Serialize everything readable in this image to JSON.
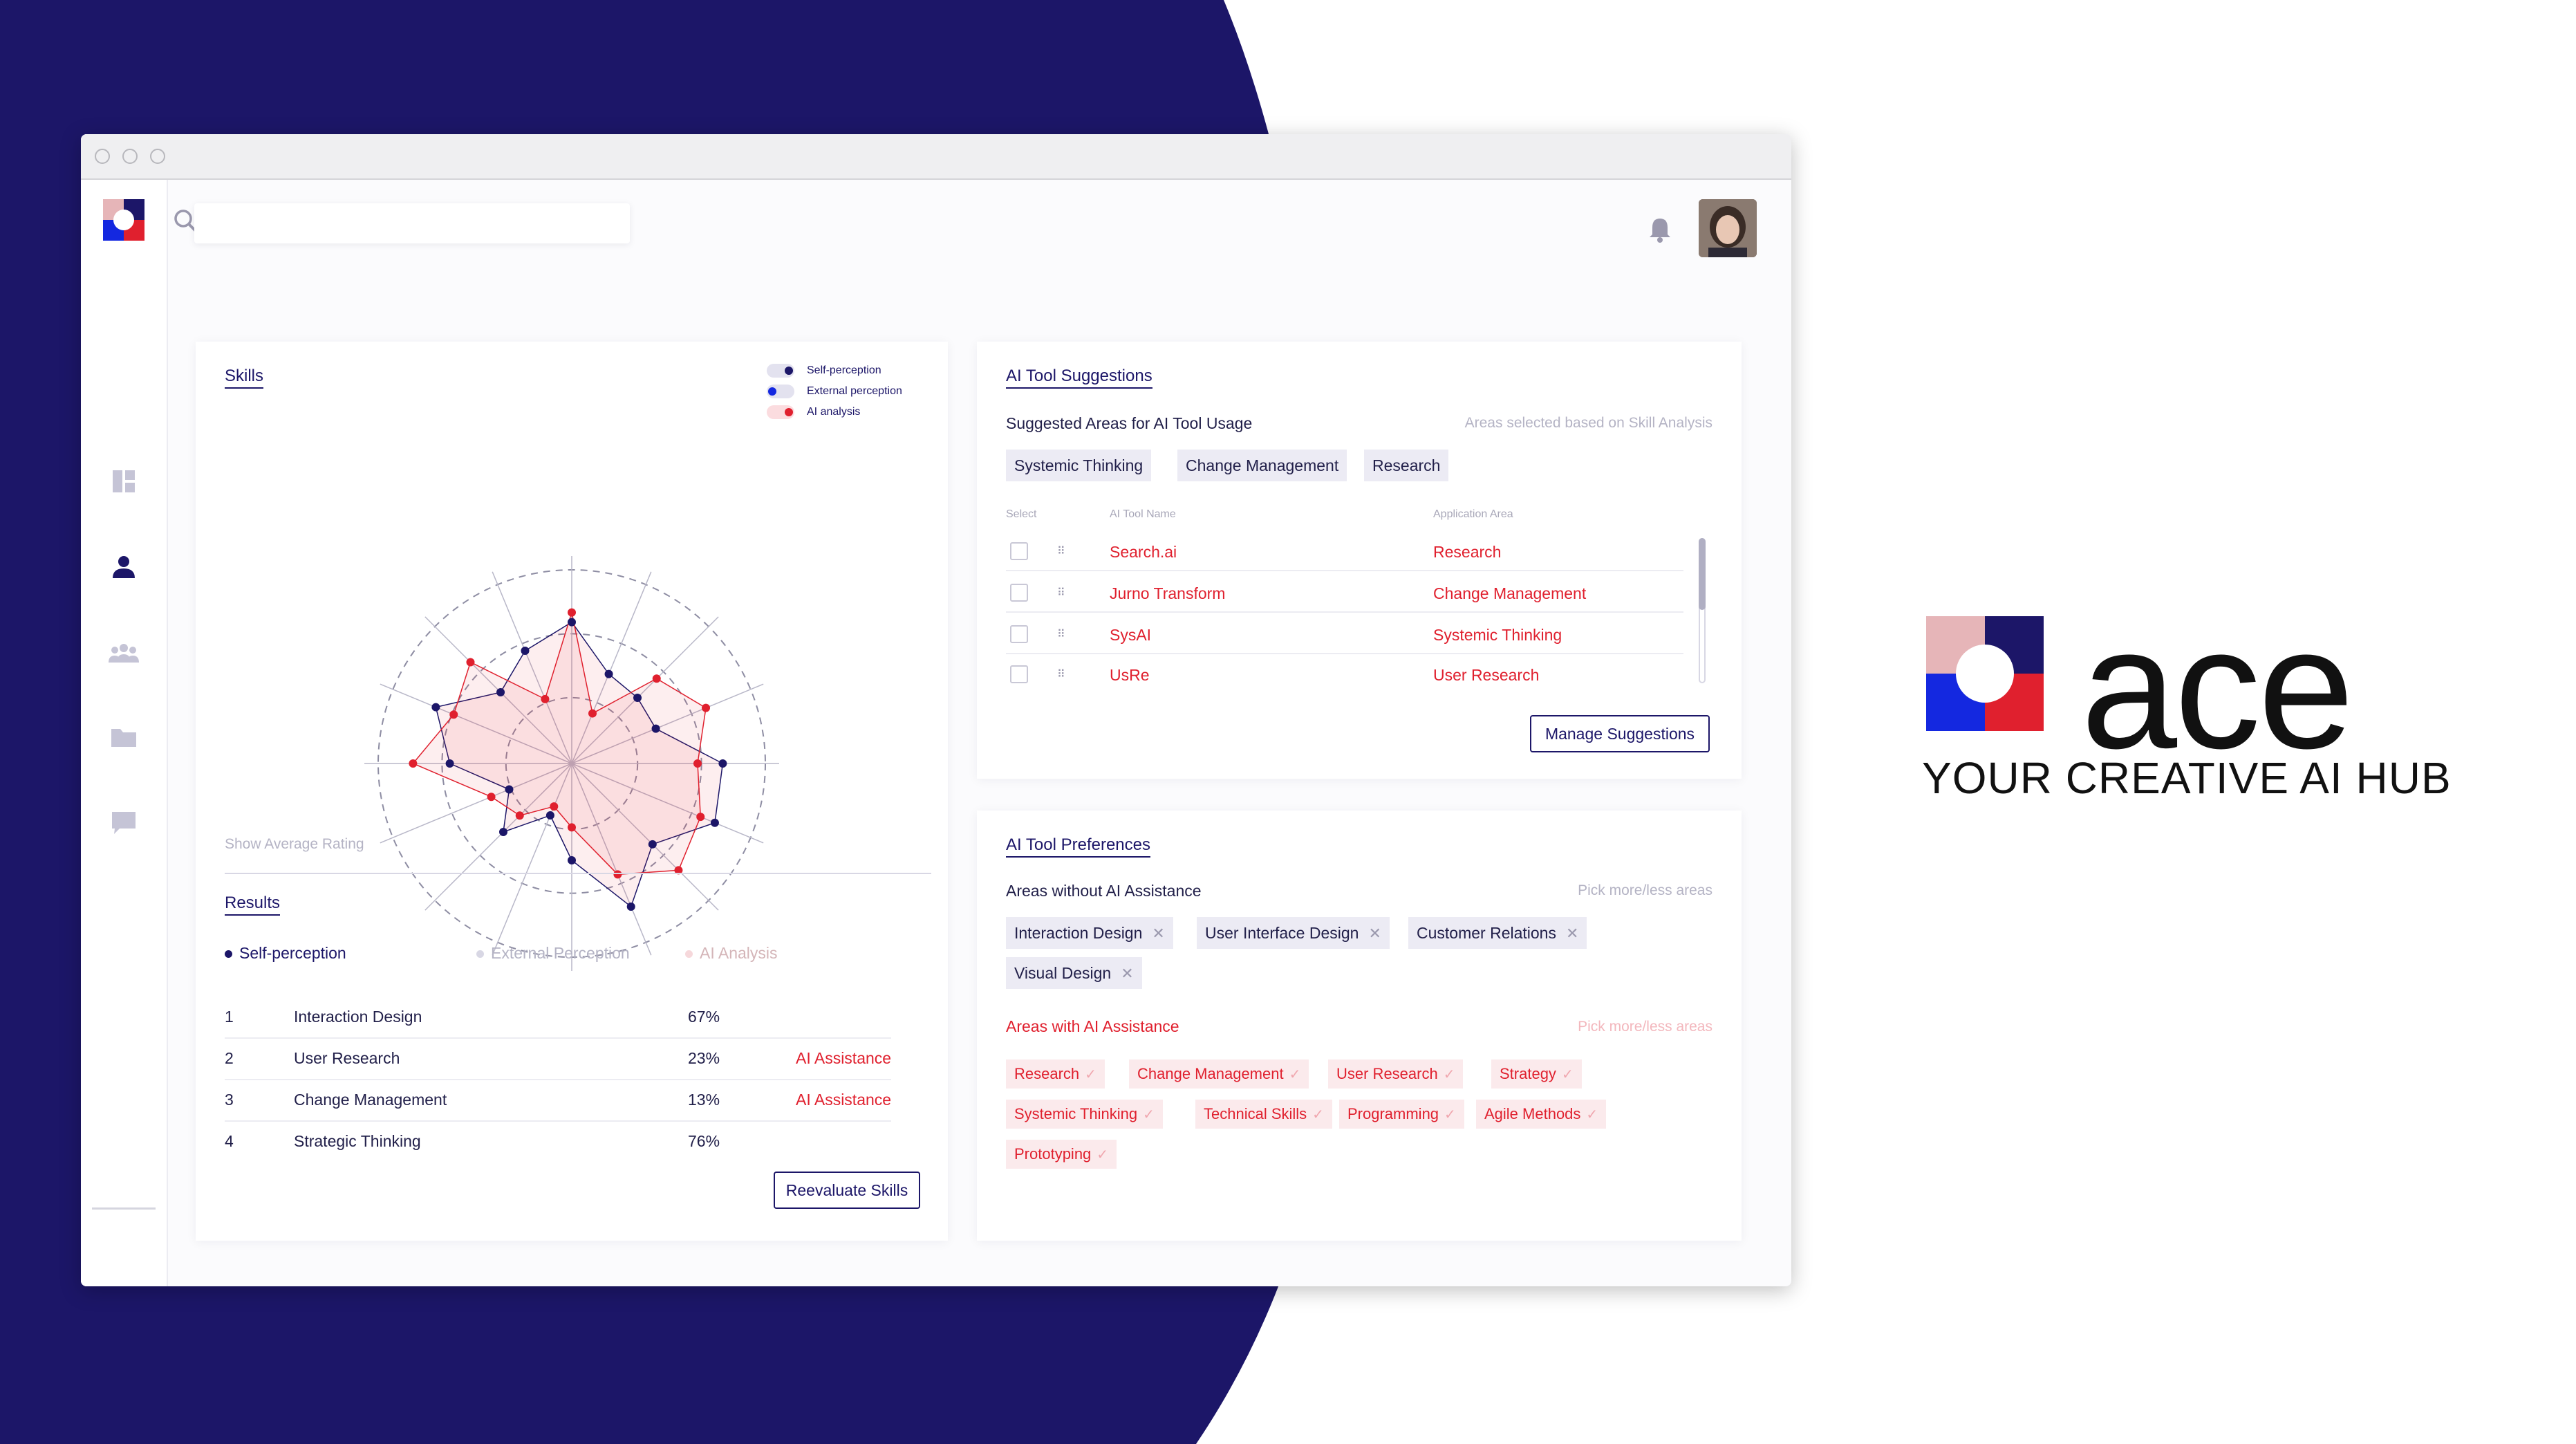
{
  "colors": {
    "navy": "#1c1668",
    "red": "#e0202e",
    "pink": "#e6b5b8",
    "white": "#ffffff"
  },
  "header": {
    "search_placeholder": ""
  },
  "skills": {
    "title": "Skills",
    "legend": [
      "Self-perception",
      "External perception",
      "AI analysis"
    ],
    "show_average": "Show Average Rating"
  },
  "results": {
    "title": "Results",
    "tabs": [
      "Self-perception",
      "External Perception",
      "AI Analysis"
    ],
    "rows": [
      {
        "rank": "1",
        "name": "Interaction Design",
        "pct": "67%",
        "tag": ""
      },
      {
        "rank": "2",
        "name": "User Research",
        "pct": "23%",
        "tag": "AI Assistance"
      },
      {
        "rank": "3",
        "name": "Change Management",
        "pct": "13%",
        "tag": "AI Assistance"
      },
      {
        "rank": "4",
        "name": "Strategic Thinking",
        "pct": "76%",
        "tag": ""
      }
    ],
    "button": "Reevaluate Skills"
  },
  "suggestions": {
    "title": "AI Tool Suggestions",
    "subtitle": "Suggested Areas for AI Tool Usage",
    "hint": "Areas selected based on Skill Analysis",
    "chips": [
      "Systemic Thinking",
      "Change Management",
      "Research"
    ],
    "col_select": "Select",
    "col_tool": "AI Tool Name",
    "col_area": "Application Area",
    "rows": [
      {
        "tool": "Search.ai",
        "area": "Research"
      },
      {
        "tool": "Jurno Transform",
        "area": "Change Management"
      },
      {
        "tool": "SysAI",
        "area": "Systemic Thinking"
      },
      {
        "tool": "UsRe",
        "area": "User Research"
      }
    ],
    "button": "Manage Suggestions"
  },
  "preferences": {
    "title": "AI Tool Preferences",
    "without_label": "Areas without AI Assistance",
    "without_hint": "Pick more/less areas",
    "without_chips": [
      "Interaction Design",
      "User Interface Design",
      "Customer Relations",
      "Visual Design"
    ],
    "with_label": "Areas with AI Assistance",
    "with_hint": "Pick more/less areas",
    "with_chips": [
      "Research",
      "Change Management",
      "User Research",
      "Strategy",
      "Systemic Thinking",
      "Technical Skills",
      "Programming",
      "Agile Methods",
      "Prototyping"
    ]
  },
  "brand": {
    "word": "ace",
    "tagline": "YOUR CREATIVE AI HUB"
  },
  "radar": {
    "axes": 16,
    "max": 1,
    "series": [
      {
        "name": "Self-perception",
        "color": "#1c1668",
        "values": [
          0.73,
          0.5,
          0.48,
          0.47,
          0.78,
          0.8,
          0.59,
          0.8,
          0.5,
          0.29,
          0.5,
          0.35,
          0.63,
          0.76,
          0.52,
          0.63
        ]
      },
      {
        "name": "AI analysis",
        "color": "#e0202e",
        "values": [
          0.78,
          0.28,
          0.62,
          0.75,
          0.65,
          0.72,
          0.78,
          0.62,
          0.33,
          0.24,
          0.38,
          0.45,
          0.82,
          0.66,
          0.74,
          0.36
        ]
      }
    ]
  }
}
